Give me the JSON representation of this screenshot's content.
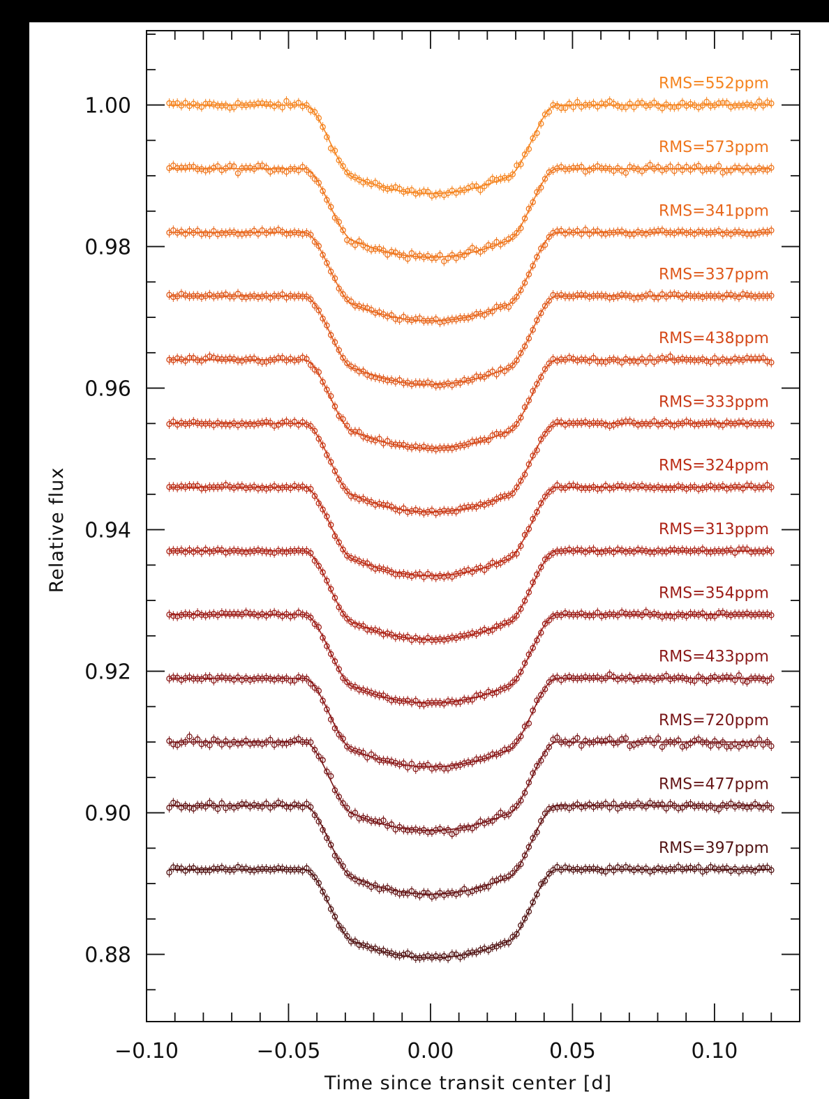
{
  "chart_data": {
    "type": "scatter",
    "title": "",
    "xlabel": "Time since transit center [d]",
    "ylabel": "Relative flux",
    "xlim": [
      -0.1,
      0.13
    ],
    "ylim": [
      0.8705,
      1.0105
    ],
    "x_ticks": [
      -0.1,
      -0.05,
      0.0,
      0.05,
      0.1
    ],
    "x_tick_labels": [
      "−0.10",
      "−0.05",
      "0.00",
      "0.05",
      "0.10"
    ],
    "x_minor_step": 0.01,
    "y_ticks": [
      1.0,
      0.98,
      0.96,
      0.94,
      0.92,
      0.9,
      0.88
    ],
    "y_tick_labels": [
      "1.00",
      "0.98",
      "0.96",
      "0.94",
      "0.92",
      "0.90",
      "0.88"
    ],
    "y_minor_step": 0.005,
    "grid": false,
    "legend": "none",
    "data_x_range": [
      -0.092,
      0.12
    ],
    "transit_model": {
      "t1": -0.0445,
      "t2": -0.0265,
      "t3": 0.0265,
      "t4": 0.0445,
      "depth": 0.0125
    },
    "series": [
      {
        "label": "RMS=552ppm",
        "baseline": 1.0,
        "color": "#f5841f"
      },
      {
        "label": "RMS=573ppm",
        "baseline": 0.991,
        "color": "#ef761d"
      },
      {
        "label": "RMS=341ppm",
        "baseline": 0.982,
        "color": "#e8671c"
      },
      {
        "label": "RMS=337ppm",
        "baseline": 0.973,
        "color": "#df581a"
      },
      {
        "label": "RMS=438ppm",
        "baseline": 0.964,
        "color": "#d54818"
      },
      {
        "label": "RMS=333ppm",
        "baseline": 0.955,
        "color": "#c93a17"
      },
      {
        "label": "RMS=324ppm",
        "baseline": 0.946,
        "color": "#bc2d16"
      },
      {
        "label": "RMS=313ppm",
        "baseline": 0.937,
        "color": "#ad2316"
      },
      {
        "label": "RMS=354ppm",
        "baseline": 0.928,
        "color": "#9c1c17"
      },
      {
        "label": "RMS=433ppm",
        "baseline": 0.919,
        "color": "#8a1818"
      },
      {
        "label": "RMS=720ppm",
        "baseline": 0.91,
        "color": "#771618"
      },
      {
        "label": "RMS=477ppm",
        "baseline": 0.901,
        "color": "#641516"
      },
      {
        "label": "RMS=397ppm",
        "baseline": 0.892,
        "color": "#521414"
      }
    ]
  }
}
